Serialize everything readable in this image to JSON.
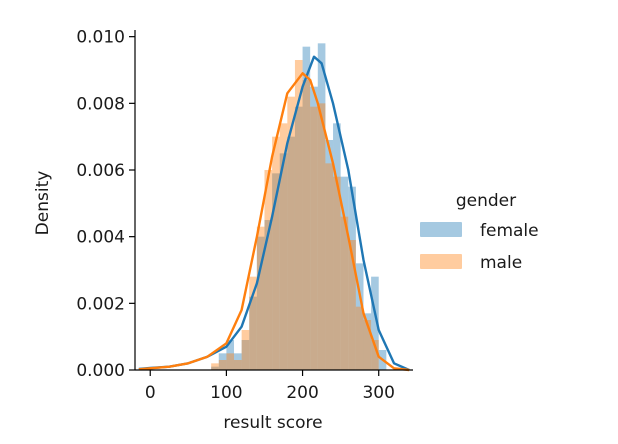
{
  "chart_data": {
    "type": "histogram-kde",
    "title": "",
    "xlabel": "result score",
    "ylabel": "Density",
    "xlim": [
      -20,
      345
    ],
    "ylim": [
      0,
      0.0102
    ],
    "x_ticks": [
      0,
      100,
      200,
      300
    ],
    "y_ticks": [
      0.0,
      0.002,
      0.004,
      0.006,
      0.008,
      0.01
    ],
    "y_tick_labels": [
      "0.000",
      "0.002",
      "0.004",
      "0.006",
      "0.008",
      "0.010"
    ],
    "grid": false,
    "legend": {
      "title": "gender",
      "placement": "right"
    },
    "series": [
      {
        "name": "female",
        "color": "#1f77b4",
        "bin_width": 10,
        "bins": [
          [
            80,
            0.0001
          ],
          [
            90,
            0.0005
          ],
          [
            100,
            0.0009
          ],
          [
            110,
            0.0005
          ],
          [
            120,
            0.0009
          ],
          [
            130,
            0.0022
          ],
          [
            140,
            0.004
          ],
          [
            150,
            0.0045
          ],
          [
            160,
            0.0059
          ],
          [
            170,
            0.0065
          ],
          [
            180,
            0.007
          ],
          [
            190,
            0.0079
          ],
          [
            200,
            0.0097
          ],
          [
            210,
            0.0085
          ],
          [
            220,
            0.0098
          ],
          [
            230,
            0.0069
          ],
          [
            240,
            0.0074
          ],
          [
            250,
            0.0058
          ],
          [
            260,
            0.0055
          ],
          [
            270,
            0.0032
          ],
          [
            280,
            0.0017
          ],
          [
            290,
            0.0028
          ],
          [
            300,
            0.0006
          ]
        ],
        "kde": [
          [
            -15,
            3e-05
          ],
          [
            0,
            6e-05
          ],
          [
            25,
            0.0001
          ],
          [
            50,
            0.0002
          ],
          [
            75,
            0.0004
          ],
          [
            100,
            0.0007
          ],
          [
            120,
            0.0013
          ],
          [
            140,
            0.0026
          ],
          [
            160,
            0.0046
          ],
          [
            180,
            0.0068
          ],
          [
            200,
            0.0085
          ],
          [
            215,
            0.0094
          ],
          [
            225,
            0.0092
          ],
          [
            240,
            0.008
          ],
          [
            260,
            0.006
          ],
          [
            280,
            0.0033
          ],
          [
            300,
            0.0012
          ],
          [
            320,
            0.0002
          ],
          [
            340,
            0.0
          ]
        ]
      },
      {
        "name": "male",
        "color": "#ff7f0e",
        "bin_width": 10,
        "bins": [
          [
            80,
            0.0002
          ],
          [
            90,
            0.0003
          ],
          [
            100,
            0.0005
          ],
          [
            110,
            0.0003
          ],
          [
            120,
            0.0012
          ],
          [
            130,
            0.0028
          ],
          [
            140,
            0.0043
          ],
          [
            150,
            0.006
          ],
          [
            160,
            0.007
          ],
          [
            170,
            0.0074
          ],
          [
            180,
            0.0082
          ],
          [
            190,
            0.0093
          ],
          [
            200,
            0.0087
          ],
          [
            210,
            0.0079
          ],
          [
            220,
            0.008
          ],
          [
            230,
            0.0062
          ],
          [
            240,
            0.0058
          ],
          [
            250,
            0.0046
          ],
          [
            260,
            0.0039
          ],
          [
            270,
            0.0019
          ],
          [
            280,
            0.0015
          ],
          [
            290,
            0.0009
          ]
        ],
        "kde": [
          [
            -15,
            2e-05
          ],
          [
            0,
            5e-05
          ],
          [
            25,
            0.0001
          ],
          [
            50,
            0.0002
          ],
          [
            75,
            0.0004
          ],
          [
            100,
            0.0008
          ],
          [
            120,
            0.0018
          ],
          [
            140,
            0.004
          ],
          [
            160,
            0.0064
          ],
          [
            180,
            0.0083
          ],
          [
            200,
            0.0089
          ],
          [
            210,
            0.0087
          ],
          [
            220,
            0.008
          ],
          [
            240,
            0.0062
          ],
          [
            260,
            0.004
          ],
          [
            280,
            0.0017
          ],
          [
            300,
            0.0004
          ],
          [
            320,
            5e-05
          ],
          [
            340,
            0.0
          ]
        ]
      }
    ]
  }
}
